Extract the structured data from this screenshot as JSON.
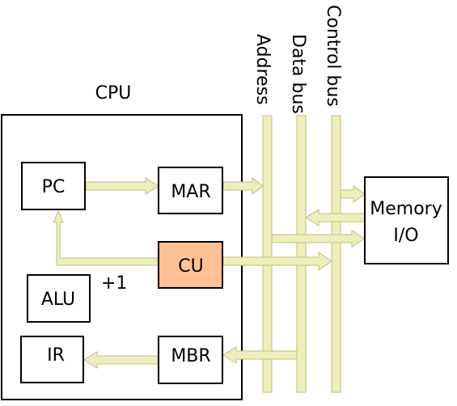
{
  "labels": {
    "cpu": "CPU",
    "pc": "PC",
    "mar": "MAR",
    "cu": "CU",
    "alu": "ALU",
    "ir": "IR",
    "mbr": "MBR",
    "plus_one": "+1",
    "memory_line1": "Memory",
    "memory_line2": "I/O",
    "address_bus": "Address",
    "data_bus": "Data bus",
    "control_bus": "Control bus"
  },
  "colors": {
    "bus_fill": "#EEEEB8",
    "bus_stroke": "#BDBD84",
    "cu_fill": "#FFC194",
    "box_stroke": "#000000"
  }
}
